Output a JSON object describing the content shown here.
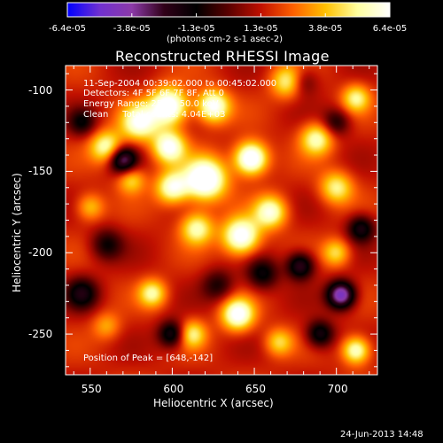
{
  "chart_data": {
    "type": "heatmap",
    "title": "Reconstructed RHESSI Image",
    "xlabel": "Heliocentric X (arcsec)",
    "ylabel": "Heliocentric Y (arcsec)",
    "xlim": [
      535,
      725
    ],
    "ylim": [
      -275,
      -85
    ],
    "x_ticks": [
      550,
      600,
      650,
      700
    ],
    "y_ticks": [
      -100,
      -150,
      -200,
      -250
    ],
    "colorbar": {
      "ticks": [
        "-6.4e-05",
        "-3.8e-05",
        "-1.3e-05",
        "1.3e-05",
        "3.8e-05",
        "6.4e-05"
      ],
      "range": [
        -6.4e-05,
        6.4e-05
      ],
      "unit_label": "(photons cm-2 s-1 asec-2)",
      "colormap": [
        "#0000ff",
        "#7030d0",
        "#8c3aa8",
        "#300018",
        "#000000",
        "#5a0000",
        "#c01000",
        "#ff6000",
        "#ffc000",
        "#ffffa0",
        "#ffffff"
      ]
    },
    "info_lines": [
      "11-Sep-2004 00:39:02.000 to 00:45:02.000",
      "Detectors: 4F 5F 6F 7F 8F, Att 0",
      "Energy Range: 25.0 - 50.0 keV",
      "Clean     Total counts: 4.04E+03"
    ],
    "peak_label": "Position of Peak = [648,-142]",
    "peak": [
      648,
      -142
    ],
    "sources": [
      {
        "x": 598,
        "y": -110,
        "amp": 6e-05,
        "sigma": 8
      },
      {
        "x": 625,
        "y": -110,
        "amp": 5.2e-05,
        "sigma": 7
      },
      {
        "x": 580,
        "y": -120,
        "amp": 4.6e-05,
        "sigma": 8
      },
      {
        "x": 560,
        "y": -135,
        "amp": 4.2e-05,
        "sigma": 7
      },
      {
        "x": 598,
        "y": -135,
        "amp": 5e-05,
        "sigma": 7
      },
      {
        "x": 620,
        "y": -155,
        "amp": 6.4e-05,
        "sigma": 9
      },
      {
        "x": 648,
        "y": -142,
        "amp": 6.4e-05,
        "sigma": 7
      },
      {
        "x": 600,
        "y": -160,
        "amp": 4.5e-05,
        "sigma": 7
      },
      {
        "x": 660,
        "y": -175,
        "amp": 4.4e-05,
        "sigma": 7
      },
      {
        "x": 642,
        "y": -190,
        "amp": 5.6e-05,
        "sigma": 8
      },
      {
        "x": 615,
        "y": -185,
        "amp": 4e-05,
        "sigma": 7
      },
      {
        "x": 688,
        "y": -130,
        "amp": 4e-05,
        "sigma": 7
      },
      {
        "x": 700,
        "y": -160,
        "amp": 3.5e-05,
        "sigma": 7
      },
      {
        "x": 670,
        "y": -95,
        "amp": 3.5e-05,
        "sigma": 7
      },
      {
        "x": 712,
        "y": -105,
        "amp": 3.4e-05,
        "sigma": 6
      },
      {
        "x": 640,
        "y": -238,
        "amp": 5.2e-05,
        "sigma": 7
      },
      {
        "x": 588,
        "y": -225,
        "amp": 3.6e-05,
        "sigma": 6
      },
      {
        "x": 700,
        "y": -200,
        "amp": 3e-05,
        "sigma": 6
      },
      {
        "x": 712,
        "y": -260,
        "amp": 4.6e-05,
        "sigma": 6
      },
      {
        "x": 612,
        "y": -250,
        "amp": 3.4e-05,
        "sigma": 6
      },
      {
        "x": 550,
        "y": -172,
        "amp": 2.6e-05,
        "sigma": 6
      },
      {
        "x": 575,
        "y": -155,
        "amp": 3e-05,
        "sigma": 6
      },
      {
        "x": 665,
        "y": -255,
        "amp": 2.8e-05,
        "sigma": 6
      },
      {
        "x": 560,
        "y": -245,
        "amp": 2e-05,
        "sigma": 6
      },
      {
        "x": 570,
        "y": -143,
        "amp": -5e-05,
        "sigma": 6
      },
      {
        "x": 703,
        "y": -226,
        "amp": -6.4e-05,
        "sigma": 6
      },
      {
        "x": 678,
        "y": -208,
        "amp": -4.2e-05,
        "sigma": 6
      },
      {
        "x": 655,
        "y": -213,
        "amp": -3e-05,
        "sigma": 7
      },
      {
        "x": 600,
        "y": -250,
        "amp": -3.8e-05,
        "sigma": 6
      },
      {
        "x": 545,
        "y": -225,
        "amp": -3.2e-05,
        "sigma": 7
      },
      {
        "x": 690,
        "y": -250,
        "amp": -3.6e-05,
        "sigma": 6
      },
      {
        "x": 545,
        "y": -120,
        "amp": -2.5e-05,
        "sigma": 6
      },
      {
        "x": 715,
        "y": -185,
        "amp": -3.5e-05,
        "sigma": 6
      },
      {
        "x": 560,
        "y": -195,
        "amp": -2.6e-05,
        "sigma": 7
      },
      {
        "x": 700,
        "y": -120,
        "amp": -2.6e-05,
        "sigma": 6
      },
      {
        "x": 680,
        "y": -95,
        "amp": -2e-05,
        "sigma": 6
      },
      {
        "x": 628,
        "y": -220,
        "amp": -2.4e-05,
        "sigma": 7
      }
    ]
  },
  "footer": {
    "timestamp": "24-Jun-2013 14:48"
  }
}
